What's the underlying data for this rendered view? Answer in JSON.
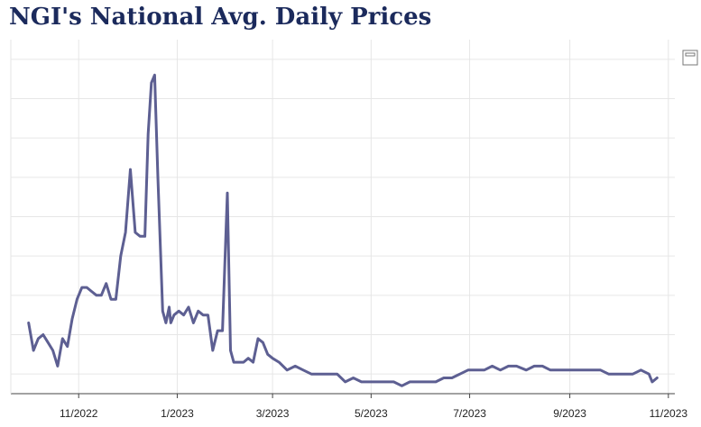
{
  "title": "NGI's National Avg. Daily Prices",
  "colors": {
    "line": "#5d5f92",
    "grid": "#e6e6e6",
    "axis": "#444444",
    "title": "#1b2a5c"
  },
  "icons": {
    "export": "export-icon"
  },
  "chart_data": {
    "type": "line",
    "title": "NGI's National Avg. Daily Prices",
    "xlabel": "",
    "ylabel": "",
    "x_ticks": [
      "11/2022",
      "1/2023",
      "3/2023",
      "5/2023",
      "7/2023",
      "9/2023",
      "11/2023"
    ],
    "xlim": [
      "2022-09-20",
      "2023-11-05"
    ],
    "ylim": [
      1.5,
      10.5
    ],
    "y_tick_labels_shown": false,
    "grid": true,
    "series": [
      {
        "x": [
          "2022-10-01",
          "2022-10-04",
          "2022-10-07",
          "2022-10-10",
          "2022-10-13",
          "2022-10-16",
          "2022-10-19",
          "2022-10-22",
          "2022-10-25",
          "2022-10-28",
          "2022-10-31",
          "2022-11-03",
          "2022-11-06",
          "2022-11-09",
          "2022-11-12",
          "2022-11-15",
          "2022-11-18",
          "2022-11-21",
          "2022-11-24",
          "2022-11-27",
          "2022-11-30",
          "2022-12-03",
          "2022-12-06",
          "2022-12-09",
          "2022-12-12",
          "2022-12-14",
          "2022-12-16",
          "2022-12-18",
          "2022-12-20",
          "2022-12-23",
          "2022-12-25",
          "2022-12-26",
          "2022-12-27",
          "2022-12-28",
          "2022-12-30",
          "2023-01-02",
          "2023-01-05",
          "2023-01-08",
          "2023-01-11",
          "2023-01-14",
          "2023-01-17",
          "2023-01-20",
          "2023-01-23",
          "2023-01-26",
          "2023-01-29",
          "2023-02-01",
          "2023-02-03",
          "2023-02-05",
          "2023-02-08",
          "2023-02-11",
          "2023-02-14",
          "2023-02-17",
          "2023-02-20",
          "2023-02-23",
          "2023-02-26",
          "2023-03-01",
          "2023-03-05",
          "2023-03-10",
          "2023-03-15",
          "2023-03-20",
          "2023-03-25",
          "2023-03-30",
          "2023-04-05",
          "2023-04-10",
          "2023-04-15",
          "2023-04-20",
          "2023-04-25",
          "2023-04-30",
          "2023-05-05",
          "2023-05-10",
          "2023-05-15",
          "2023-05-20",
          "2023-05-25",
          "2023-05-30",
          "2023-06-05",
          "2023-06-10",
          "2023-06-15",
          "2023-06-20",
          "2023-06-25",
          "2023-06-30",
          "2023-07-05",
          "2023-07-10",
          "2023-07-15",
          "2023-07-20",
          "2023-07-25",
          "2023-07-30",
          "2023-08-05",
          "2023-08-10",
          "2023-08-15",
          "2023-08-20",
          "2023-08-25",
          "2023-08-30",
          "2023-09-05",
          "2023-09-10",
          "2023-09-15",
          "2023-09-20",
          "2023-09-25",
          "2023-09-30",
          "2023-10-05",
          "2023-10-10",
          "2023-10-15",
          "2023-10-20",
          "2023-10-22",
          "2023-10-25"
        ],
        "values": [
          3.3,
          2.6,
          2.9,
          3.0,
          2.8,
          2.6,
          2.2,
          2.9,
          2.7,
          3.4,
          3.9,
          4.2,
          4.2,
          4.1,
          4.0,
          4.0,
          4.3,
          3.9,
          3.9,
          5.0,
          5.6,
          7.2,
          5.6,
          5.5,
          5.5,
          8.1,
          9.4,
          9.6,
          7.0,
          3.6,
          3.3,
          3.5,
          3.7,
          3.3,
          3.5,
          3.6,
          3.5,
          3.7,
          3.3,
          3.6,
          3.5,
          3.5,
          2.6,
          3.1,
          3.1,
          6.6,
          2.6,
          2.3,
          2.3,
          2.3,
          2.4,
          2.3,
          2.9,
          2.8,
          2.5,
          2.4,
          2.3,
          2.1,
          2.2,
          2.1,
          2.0,
          2.0,
          2.0,
          2.0,
          1.8,
          1.9,
          1.8,
          1.8,
          1.8,
          1.8,
          1.8,
          1.7,
          1.8,
          1.8,
          1.8,
          1.8,
          1.9,
          1.9,
          2.0,
          2.1,
          2.1,
          2.1,
          2.2,
          2.1,
          2.2,
          2.2,
          2.1,
          2.2,
          2.2,
          2.1,
          2.1,
          2.1,
          2.1,
          2.1,
          2.1,
          2.1,
          2.0,
          2.0,
          2.0,
          2.0,
          2.1,
          2.0,
          1.8,
          1.9
        ]
      }
    ]
  }
}
